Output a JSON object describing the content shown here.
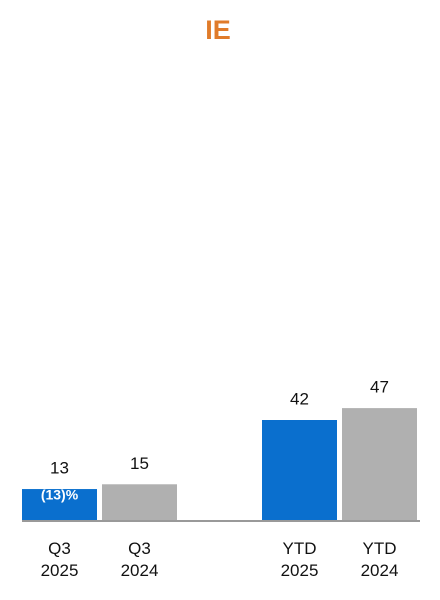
{
  "chart_data": {
    "type": "bar",
    "title": "IE",
    "categories": [
      "Q3 2025",
      "Q3 2024",
      "YTD 2025",
      "YTD 2024"
    ],
    "values": [
      13,
      15,
      42,
      47
    ],
    "colors": [
      "#0a6fce",
      "#b0b0b0",
      "#0a6fce",
      "#b0b0b0"
    ],
    "annotation": "(13)%"
  }
}
